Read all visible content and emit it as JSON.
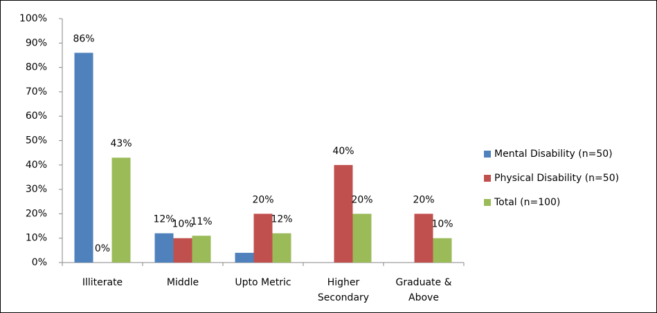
{
  "chart_data": {
    "type": "bar",
    "categories": [
      "Illiterate",
      "Middle",
      "Upto Metric",
      "Higher Secondary",
      "Graduate & Above"
    ],
    "series": [
      {
        "name": "Mental Disability (n=50)",
        "color": "#4f81bd",
        "values": [
          86,
          12,
          4,
          0,
          0
        ],
        "value_labels": [
          "86%",
          "12%",
          null,
          null,
          null
        ]
      },
      {
        "name": "Physical Disability (n=50)",
        "color": "#c0504d",
        "values": [
          0,
          10,
          20,
          40,
          20
        ],
        "value_labels": [
          "0%",
          "10%",
          "20%",
          "40%",
          "20%"
        ]
      },
      {
        "name": "Total (n=100)",
        "color": "#9bbb59",
        "values": [
          43,
          11,
          12,
          20,
          10
        ],
        "value_labels": [
          "43%",
          "11%",
          "12%",
          "20%",
          "10%"
        ]
      }
    ],
    "ylim": [
      0,
      100
    ],
    "yticks": [
      {
        "value": 0,
        "label": "0%"
      },
      {
        "value": 10,
        "label": "10%"
      },
      {
        "value": 20,
        "label": "20%"
      },
      {
        "value": 30,
        "label": "30%"
      },
      {
        "value": 40,
        "label": "40%"
      },
      {
        "value": 50,
        "label": "50%"
      },
      {
        "value": 60,
        "label": "60%"
      },
      {
        "value": 70,
        "label": "70%"
      },
      {
        "value": 80,
        "label": "80%"
      },
      {
        "value": 90,
        "label": "90%"
      },
      {
        "value": 100,
        "label": "100%"
      }
    ],
    "legend": "right"
  }
}
